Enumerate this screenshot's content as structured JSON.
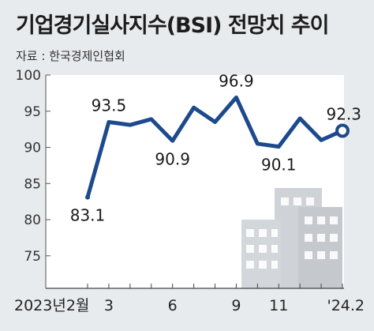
{
  "header": {
    "title": "기업경기실사지수(BSI) 전망치 추이",
    "source": "자료 : 한국경제인협회"
  },
  "colors": {
    "background": "#e8ebee",
    "plot_area": "#ffffff",
    "line": "#1d4a8c",
    "building": "#cfd3d7"
  },
  "decoration": {
    "icon": "building-icon"
  },
  "chart_data": {
    "type": "line",
    "title": "기업경기실사지수(BSI) 전망치 추이",
    "xlabel": "",
    "ylabel": "",
    "x": [
      "2023-02",
      "2023-03",
      "2023-04",
      "2023-05",
      "2023-06",
      "2023-07",
      "2023-08",
      "2023-09",
      "2023-10",
      "2023-11",
      "2023-12",
      "2024-01",
      "2024-02"
    ],
    "series": [
      {
        "values": [
          83.1,
          93.5,
          93.1,
          93.9,
          90.9,
          95.5,
          93.5,
          96.9,
          90.5,
          90.1,
          94.0,
          91.0,
          92.3
        ]
      }
    ],
    "x_tick_labels": [
      {
        "index": 0,
        "text": "2023년2월"
      },
      {
        "index": 1,
        "text": "3"
      },
      {
        "index": 4,
        "text": "6"
      },
      {
        "index": 7,
        "text": "9"
      },
      {
        "index": 9,
        "text": "11"
      },
      {
        "index": 12,
        "text": "'24.2"
      }
    ],
    "data_labels": [
      {
        "index": 0,
        "text": "83.1",
        "position": "below"
      },
      {
        "index": 1,
        "text": "93.5",
        "position": "above"
      },
      {
        "index": 4,
        "text": "90.9",
        "position": "below"
      },
      {
        "index": 7,
        "text": "96.9",
        "position": "above"
      },
      {
        "index": 9,
        "text": "90.1",
        "position": "below"
      },
      {
        "index": 12,
        "text": "92.3",
        "position": "above"
      }
    ],
    "y_ticks": [
      75,
      80,
      85,
      90,
      95,
      100
    ],
    "ylim": [
      70.5,
      100
    ],
    "grid": false,
    "legend": "none"
  }
}
